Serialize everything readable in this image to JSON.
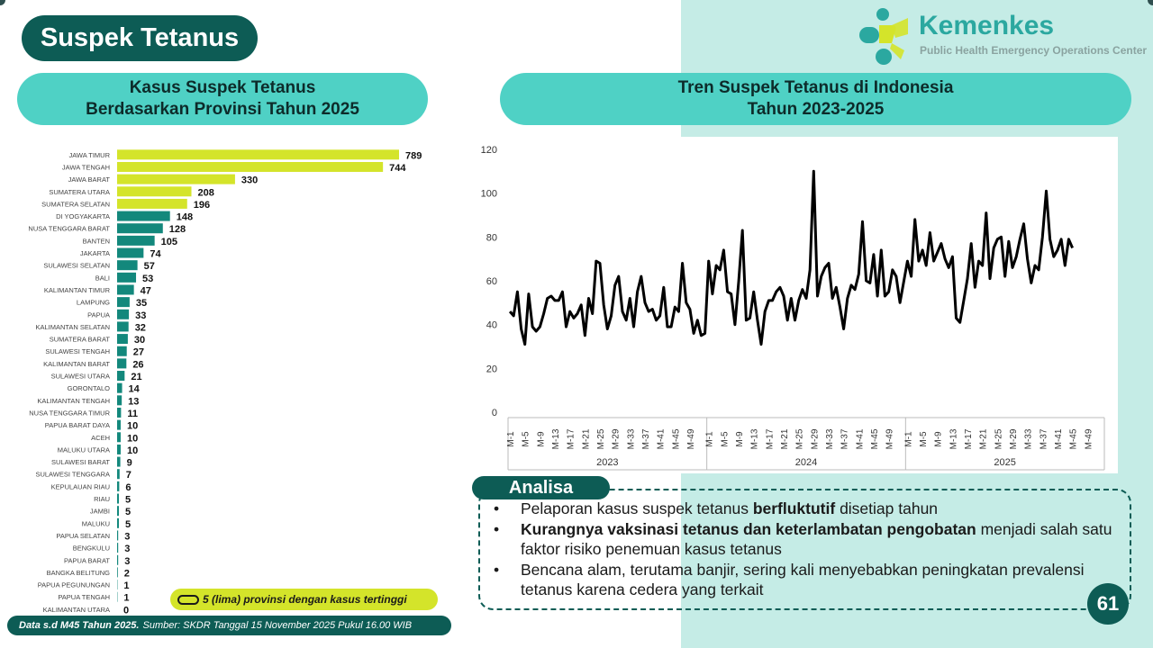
{
  "page_title": "Suspek Tetanus",
  "logo": {
    "name": "Kemenkes",
    "subtitle": "Public Health Emergency Operations Center"
  },
  "bar_section": {
    "title_line1": "Kasus Suspek Tetanus",
    "title_line2": "Berdasarkan Provinsi Tahun 2025"
  },
  "line_section": {
    "title_line1": "Tren Suspek Tetanus di Indonesia",
    "title_line2": "Tahun 2023-2025"
  },
  "legend": {
    "text": "5 (lima) provinsi dengan kasus tertinggi"
  },
  "footer": {
    "bold": "Data s.d M45 Tahun 2025.",
    "text": "Sumber: SKDR Tanggal 15 November 2025 Pukul 16.00 WIB"
  },
  "analisa": {
    "label": "Analisa",
    "items": [
      {
        "pre": "Pelaporan kasus suspek tetanus ",
        "bold": "berfluktutif",
        "post": " disetiap tahun"
      },
      {
        "pre": "",
        "bold": "Kurangnya vaksinasi tetanus dan keterlambatan pengobatan",
        "post": " menjadi salah satu faktor risiko penemuan kasus tetanus"
      },
      {
        "pre": "Bencana alam, terutama banjir, sering kali menyebabkan peningkatan prevalensi tetanus karena cedera yang terkait",
        "bold": "",
        "post": ""
      }
    ]
  },
  "page_number": "61",
  "colors": {
    "dark_teal": "#0d5c55",
    "teal": "#4fd1c5",
    "highlight": "#d4e42a",
    "bar_teal": "#13887c",
    "light_bg": "#c5ece6"
  },
  "chart_data": [
    {
      "type": "bar",
      "orientation": "horizontal",
      "categories": [
        "JAWA TIMUR",
        "JAWA TENGAH",
        "JAWA BARAT",
        "SUMATERA UTARA",
        "SUMATERA SELATAN",
        "DI YOGYAKARTA",
        "NUSA TENGGARA BARAT",
        "BANTEN",
        "JAKARTA",
        "SULAWESI SELATAN",
        "BALI",
        "KALIMANTAN TIMUR",
        "LAMPUNG",
        "PAPUA",
        "KALIMANTAN SELATAN",
        "SUMATERA BARAT",
        "SULAWESI TENGAH",
        "KALIMANTAN BARAT",
        "SULAWESI UTARA",
        "GORONTALO",
        "KALIMANTAN TENGAH",
        "NUSA TENGGARA TIMUR",
        "PAPUA BARAT DAYA",
        "ACEH",
        "MALUKU UTARA",
        "SULAWESI BARAT",
        "SULAWESI TENGGARA",
        "KEPULAUAN RIAU",
        "RIAU",
        "JAMBI",
        "MALUKU",
        "PAPUA SELATAN",
        "BENGKULU",
        "PAPUA BARAT",
        "BANGKA BELITUNG",
        "PAPUA PEGUNUNGAN",
        "PAPUA TENGAH",
        "KALIMANTAN UTARA"
      ],
      "values": [
        789,
        744,
        330,
        208,
        196,
        148,
        128,
        105,
        74,
        57,
        53,
        47,
        35,
        33,
        32,
        30,
        27,
        26,
        21,
        14,
        13,
        11,
        10,
        10,
        10,
        9,
        7,
        6,
        5,
        5,
        5,
        3,
        3,
        3,
        2,
        1,
        1,
        0
      ],
      "value_labels": [
        "789",
        "744",
        "330",
        "208",
        "196",
        "148",
        "128",
        "105",
        "74",
        "57",
        "53",
        "47",
        "35",
        "33",
        "32",
        "30",
        "27",
        "26",
        "21",
        "14",
        "13",
        "11",
        "10",
        "10",
        "10",
        "9",
        "7",
        "6",
        "5",
        "5",
        "5",
        "3",
        "3",
        "3",
        "2",
        "1",
        "1",
        "0"
      ],
      "highlight_top": 5
    },
    {
      "type": "line",
      "y_ticks": [
        "0",
        "20",
        "40",
        "60",
        "80",
        "100",
        "120"
      ],
      "ylim": [
        0,
        120
      ],
      "x_tick_labels": [
        "M-1",
        "M-5",
        "M-9",
        "M-13",
        "M-17",
        "M-21",
        "M-25",
        "M-29",
        "M-33",
        "M-37",
        "M-41",
        "M-45",
        "M-49"
      ],
      "x_tick_labels_2025": [
        "M-1",
        "M-5",
        "M-9",
        "M-13",
        "M-17",
        "M-21",
        "M-25",
        "M-29",
        "M-33",
        "M-37",
        "M-41",
        "M-45",
        "M-49"
      ],
      "years": [
        "2023",
        "2024",
        "2025"
      ],
      "series": [
        {
          "year": "2023",
          "values": [
            46,
            44,
            55,
            38,
            31,
            54,
            39,
            37,
            39,
            45,
            52,
            53,
            51,
            51,
            55,
            39,
            46,
            43,
            45,
            49,
            35,
            52,
            45,
            69,
            68,
            49,
            38,
            44,
            58,
            62,
            46,
            42,
            52,
            39,
            55,
            62,
            50,
            46,
            47,
            42,
            44,
            57,
            39,
            39,
            48,
            46,
            68,
            50,
            47,
            36,
            42,
            35,
            36
          ]
        },
        {
          "year": "2024",
          "values": [
            69,
            54,
            67,
            65,
            74,
            55,
            54,
            40,
            60,
            83,
            42,
            43,
            55,
            42,
            31,
            46,
            51,
            51,
            55,
            57,
            53,
            42,
            52,
            42,
            51,
            56,
            52,
            65,
            110,
            53,
            62,
            66,
            68,
            52,
            57,
            48,
            38,
            52,
            58,
            56,
            63,
            87,
            60,
            59,
            72,
            53,
            74,
            53,
            55,
            65,
            62,
            50
          ]
        },
        {
          "year": "2025",
          "values": [
            69,
            62,
            88,
            69,
            74,
            67,
            82,
            69,
            73,
            77,
            70,
            66,
            71,
            43,
            41,
            51,
            61,
            77,
            57,
            69,
            67,
            91,
            61,
            75,
            79,
            80,
            62,
            78,
            66,
            71,
            79,
            86,
            70,
            59,
            67,
            65,
            80,
            101,
            79,
            71,
            74,
            79,
            67,
            79,
            75
          ]
        }
      ]
    }
  ]
}
